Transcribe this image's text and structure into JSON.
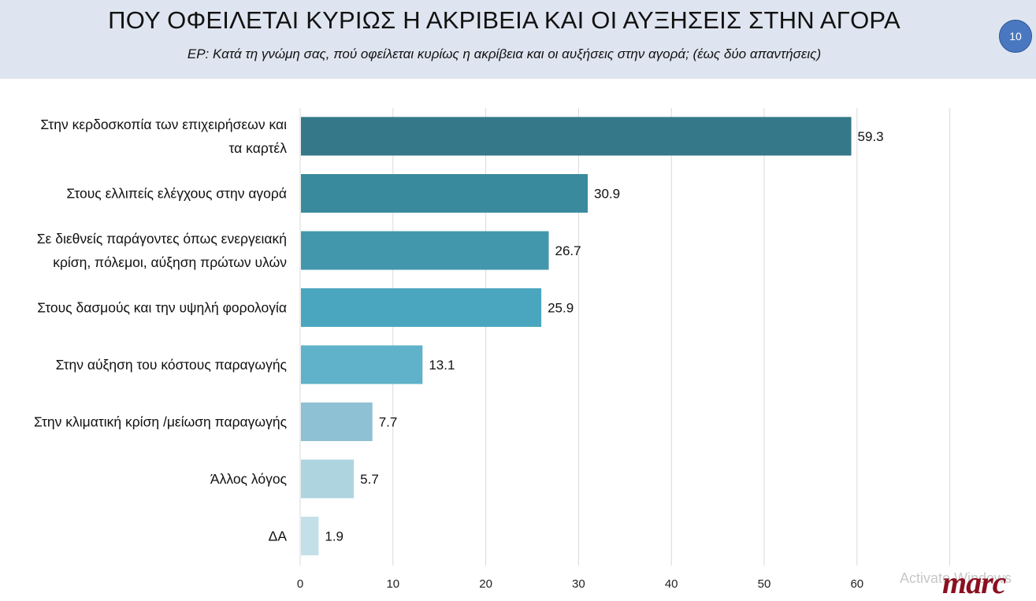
{
  "header": {
    "title": "ΠΟΥ ΟΦΕΙΛΕΤΑΙ ΚΥΡΙΩΣ Η ΑΚΡΙΒΕΙΑ ΚΑΙ ΟΙ ΑΥΞΗΣΕΙΣ ΣΤΗΝ ΑΓΟΡΑ",
    "subtitle": "ΕΡ: Κατά τη γνώμη σας, πού οφείλεται κυρίως η ακρίβεια και οι αυξήσεις στην αγορά;  (έως δύο απαντήσεις)",
    "page_number": "10"
  },
  "chart_data": {
    "type": "bar",
    "orientation": "horizontal",
    "categories": [
      [
        "Στην κερδοσκοπία των επιχειρήσεων και",
        "τα καρτέλ"
      ],
      [
        "Στους ελλιπείς ελέγχους στην αγορά"
      ],
      [
        "Σε διεθνείς παράγοντες όπως ενεργειακή",
        "κρίση, πόλεμοι, αύξηση πρώτων υλών"
      ],
      [
        "Στους δασμούς και την υψηλή φορολογία"
      ],
      [
        "Στην αύξηση του κόστους παραγωγής"
      ],
      [
        "Στην κλιματική κρίση  /μείωση παραγωγής"
      ],
      [
        "Άλλος λόγος"
      ],
      [
        "ΔΑ"
      ]
    ],
    "values": [
      59.3,
      30.9,
      26.7,
      25.9,
      13.1,
      7.7,
      5.7,
      1.9
    ],
    "value_labels": [
      "59.3",
      "30.9",
      "26.7",
      "25.9",
      "13.1",
      "7.7",
      "5.7",
      "1.9"
    ],
    "bar_colors": [
      "#34788a",
      "#3a8a9e",
      "#4397ad",
      "#4aa6be",
      "#5fb2c9",
      "#8ec1d3",
      "#aed4df",
      "#c3dfe8"
    ],
    "xlim": [
      0,
      70
    ],
    "xticks": [
      "0",
      "10",
      "20",
      "30",
      "40",
      "50",
      "60"
    ],
    "grid": true,
    "xlabel": "",
    "ylabel": ""
  },
  "footer": {
    "watermark": "Activate Windows",
    "logo": "marc"
  }
}
